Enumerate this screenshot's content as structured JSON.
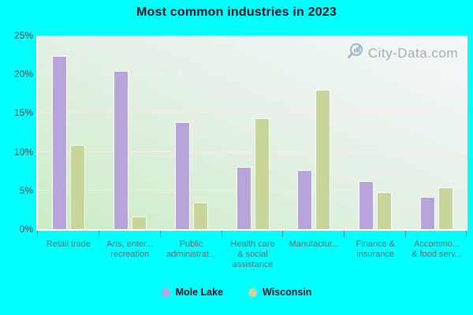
{
  "title": "Most common industries in 2023",
  "watermark": {
    "text": "City-Data.com",
    "icon": "magnifier-bar-chart-icon"
  },
  "y_axis": {
    "max": 25,
    "ticks": [
      {
        "value": 25,
        "label": "25%"
      },
      {
        "value": 20,
        "label": "20%"
      },
      {
        "value": 15,
        "label": "15%"
      },
      {
        "value": 10,
        "label": "10%"
      },
      {
        "value": 5,
        "label": "5%"
      },
      {
        "value": 0,
        "label": "0%"
      }
    ]
  },
  "colors": {
    "page_background": "#00ffff",
    "mole_lake_bar": "#b7a4da",
    "wisconsin_bar": "#c9d69b",
    "plot_gradient_top": "#f3f7fa",
    "plot_gradient_bottom": "#c9ecc5",
    "title_text": "#121220",
    "axis_tick_text": "#474747",
    "category_text": "#5d6f6f",
    "watermark_text": "#8e98a4"
  },
  "chart_data": {
    "type": "bar",
    "title": "Most common industries in 2023",
    "unit": "%",
    "ylim": [
      0,
      25
    ],
    "grid": true,
    "legend_position": "bottom",
    "categories": [
      "Retail trade",
      "Arts, entertainment, recreation",
      "Public administration",
      "Health care & social assistance",
      "Manufacturing",
      "Finance & insurance",
      "Accommodation & food services"
    ],
    "category_tick_labels": [
      [
        "Retail trade"
      ],
      [
        "Arts, enter...",
        "recreation"
      ],
      [
        "Public",
        "administrat..."
      ],
      [
        "Health care",
        "& social",
        "assistance"
      ],
      [
        "Manufactur..."
      ],
      [
        "Finance &",
        "insurance"
      ],
      [
        "Accommo...",
        "& food serv..."
      ]
    ],
    "series": [
      {
        "name": "Mole Lake",
        "color": "#b7a4da",
        "values": [
          22.4,
          20.4,
          13.8,
          8.0,
          7.6,
          6.2,
          4.2
        ]
      },
      {
        "name": "Wisconsin",
        "color": "#c9d69b",
        "values": [
          10.9,
          1.6,
          3.5,
          14.3,
          18.0,
          4.8,
          5.4
        ]
      }
    ]
  }
}
